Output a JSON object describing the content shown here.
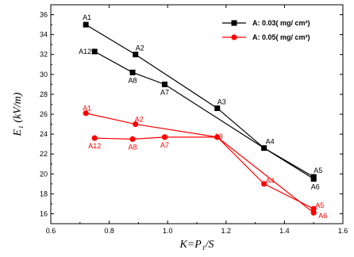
{
  "chart_data": {
    "type": "line",
    "xlabel": "K=P₁/S",
    "ylabel": "E₁ (kV/m)",
    "xlim": [
      0.6,
      1.6
    ],
    "ylim": [
      15,
      37
    ],
    "x_ticks": [
      "0.6",
      "0.8",
      "1.0",
      "1.2",
      "1.4",
      "1.6"
    ],
    "y_ticks": [
      "16",
      "18",
      "20",
      "22",
      "24",
      "26",
      "28",
      "30",
      "32",
      "34",
      "36"
    ],
    "grid": false,
    "legend_position": "top-right",
    "legend": [
      "A: 0.03( mg/ cm²)",
      "A: 0.05( mg/ cm²)"
    ],
    "colors": {
      "series1": "#000000",
      "series2": "#ff0000"
    },
    "series": [
      {
        "name": "A: 0.03( mg/ cm²)",
        "points": [
          {
            "label": "A1",
            "x": 0.72,
            "y": 35.0
          },
          {
            "label": "A2",
            "x": 0.89,
            "y": 32.0
          },
          {
            "label": "A3",
            "x": 1.17,
            "y": 26.6
          },
          {
            "label": "A4",
            "x": 1.33,
            "y": 22.6
          },
          {
            "label": "A5",
            "x": 1.5,
            "y": 19.7
          },
          {
            "label": "A12",
            "x": 0.75,
            "y": 32.3
          },
          {
            "label": "A8",
            "x": 0.88,
            "y": 30.2
          },
          {
            "label": "A7",
            "x": 0.99,
            "y": 29.0
          },
          {
            "label": "A6",
            "x": 1.5,
            "y": 19.5
          }
        ],
        "lines": [
          [
            "A1",
            "A2",
            "A3",
            "A4",
            "A5"
          ],
          [
            "A12",
            "A8",
            "A7",
            "A4",
            "A6"
          ]
        ]
      },
      {
        "name": "A: 0.05( mg/ cm²)",
        "points": [
          {
            "label": "A1",
            "x": 0.72,
            "y": 26.1
          },
          {
            "label": "A2",
            "x": 0.89,
            "y": 25.0
          },
          {
            "label": "A3",
            "x": 1.17,
            "y": 23.7
          },
          {
            "label": "A4",
            "x": 1.33,
            "y": 19.0
          },
          {
            "label": "A5",
            "x": 1.5,
            "y": 16.5
          },
          {
            "label": "A12",
            "x": 0.75,
            "y": 23.6
          },
          {
            "label": "A8",
            "x": 0.88,
            "y": 23.5
          },
          {
            "label": "A7",
            "x": 0.99,
            "y": 23.7
          },
          {
            "label": "A6",
            "x": 1.5,
            "y": 16.1
          }
        ],
        "lines": [
          [
            "A1",
            "A2",
            "A3",
            "A4",
            "A5"
          ],
          [
            "A12",
            "A8",
            "A7",
            "A3",
            "A6"
          ]
        ]
      }
    ]
  }
}
